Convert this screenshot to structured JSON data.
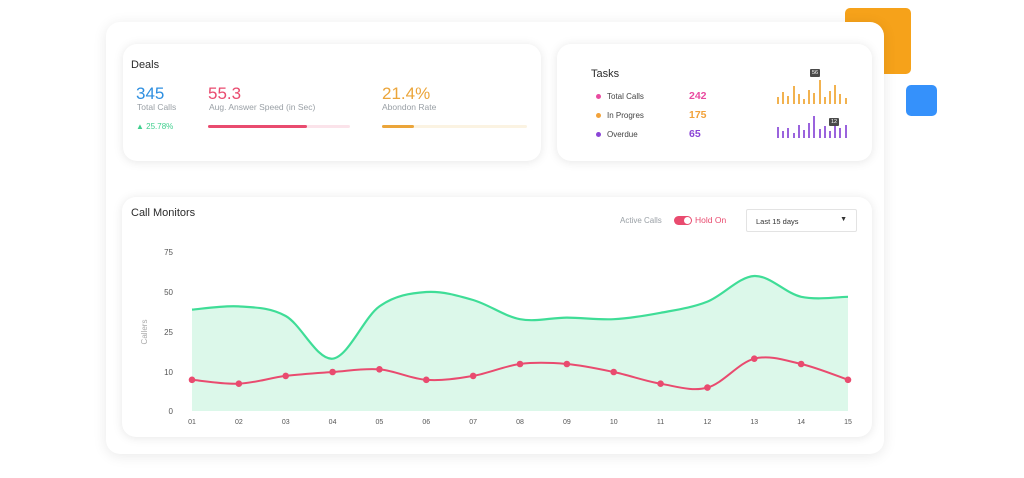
{
  "deals": {
    "title": "Deals",
    "total_calls": {
      "value": "345",
      "label": "Total Calls",
      "change": "25.78%",
      "color": "#2e8fe0"
    },
    "answer_speed": {
      "value": "55.3",
      "label": "Aug. Answer Speed (in Sec)",
      "color": "#e94b6f",
      "progress": 0.7
    },
    "abandon_rate": {
      "value": "21.4%",
      "label": "Abondon Rate",
      "color": "#eba53a",
      "progress": 0.22
    }
  },
  "tasks": {
    "title": "Tasks",
    "items": [
      {
        "label": "Total Calls",
        "value": "242",
        "color": "#e94ba0"
      },
      {
        "label": "In Progres",
        "value": "175",
        "color": "#f2a23a"
      },
      {
        "label": "Overdue",
        "value": "65",
        "color": "#8b45d6"
      }
    ],
    "sparkline_top_badge": "56",
    "sparkline_bottom_badge": "12",
    "sparkline_top": [
      0.3,
      0.5,
      0.35,
      0.75,
      0.4,
      0.2,
      0.6,
      0.45,
      1.0,
      0.3,
      0.55,
      0.8,
      0.4,
      0.25
    ],
    "sparkline_bottom": [
      0.5,
      0.3,
      0.45,
      0.25,
      0.6,
      0.35,
      0.7,
      1.0,
      0.4,
      0.55,
      0.3,
      0.85,
      0.45,
      0.6
    ]
  },
  "monitor": {
    "title": "Call Monitors",
    "legend_active": "Active Calls",
    "legend_hold": "Hold On",
    "range_select": "Last 15 days"
  },
  "chart_data": {
    "type": "area",
    "ylabel": "Callers",
    "yticks": [
      0,
      10,
      25,
      50,
      75
    ],
    "categories": [
      "01",
      "02",
      "03",
      "04",
      "05",
      "06",
      "07",
      "08",
      "09",
      "10",
      "11",
      "12",
      "13",
      "14",
      "15"
    ],
    "series": [
      {
        "name": "Active Calls",
        "color": "#3fdd97",
        "values": [
          39,
          41,
          35,
          15,
          41,
          50,
          45,
          33,
          34,
          33,
          37,
          44,
          60,
          47,
          47
        ]
      },
      {
        "name": "Hold On",
        "color": "#e94b6f",
        "values": [
          8,
          7,
          9,
          10,
          11,
          8,
          9,
          13,
          13,
          10,
          7,
          6,
          15,
          13,
          8
        ]
      }
    ]
  }
}
